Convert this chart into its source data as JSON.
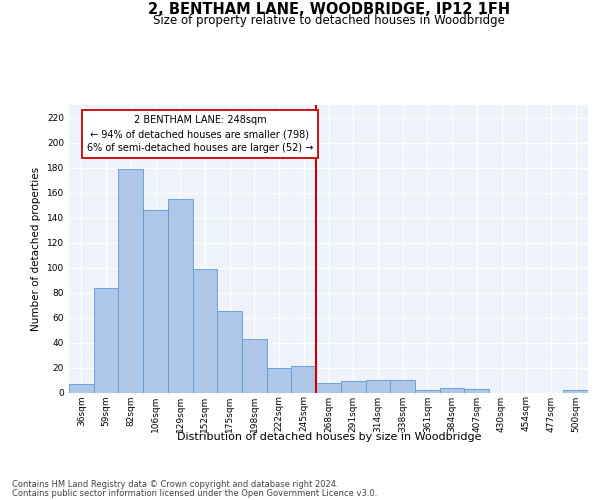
{
  "title": "2, BENTHAM LANE, WOODBRIDGE, IP12 1FH",
  "subtitle": "Size of property relative to detached houses in Woodbridge",
  "xlabel": "Distribution of detached houses by size in Woodbridge",
  "ylabel": "Number of detached properties",
  "footnote1": "Contains HM Land Registry data © Crown copyright and database right 2024.",
  "footnote2": "Contains public sector information licensed under the Open Government Licence v3.0.",
  "annotation_line1": "2 BENTHAM LANE: 248sqm",
  "annotation_line2": "← 94% of detached houses are smaller (798)",
  "annotation_line3": "6% of semi-detached houses are larger (52) →",
  "bar_labels": [
    "36sqm",
    "59sqm",
    "82sqm",
    "106sqm",
    "129sqm",
    "152sqm",
    "175sqm",
    "198sqm",
    "222sqm",
    "245sqm",
    "268sqm",
    "291sqm",
    "314sqm",
    "338sqm",
    "361sqm",
    "384sqm",
    "407sqm",
    "430sqm",
    "454sqm",
    "477sqm",
    "500sqm"
  ],
  "bar_values": [
    7,
    84,
    179,
    146,
    155,
    99,
    65,
    43,
    20,
    21,
    8,
    9,
    10,
    10,
    2,
    4,
    3,
    0,
    0,
    0,
    2
  ],
  "bar_color": "#aec6e8",
  "bar_edge_color": "#5b9bd5",
  "vline_color": "#cc0000",
  "vline_x": 9.5,
  "box_color": "#cc0000",
  "ylim": [
    0,
    230
  ],
  "yticks": [
    0,
    20,
    40,
    60,
    80,
    100,
    120,
    140,
    160,
    180,
    200,
    220
  ],
  "bg_color": "#eef2fb",
  "grid_color": "#ffffff",
  "title_fontsize": 10.5,
  "subtitle_fontsize": 8.5,
  "ylabel_fontsize": 7.5,
  "xlabel_fontsize": 8,
  "tick_fontsize": 6.5,
  "annotation_fontsize": 7,
  "footnote_fontsize": 6
}
